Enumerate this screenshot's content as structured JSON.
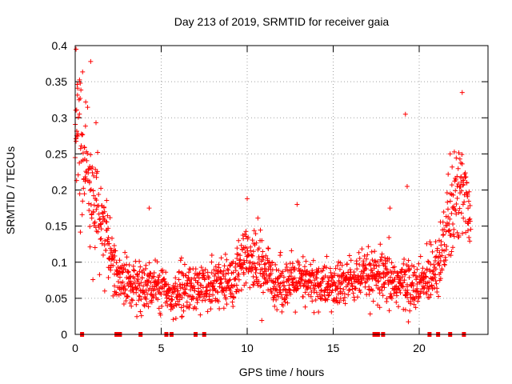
{
  "chart_data": {
    "type": "scatter",
    "title": "Day 213 of 2019, SRMTID for receiver gaia",
    "xlabel": "GPS time / hours",
    "ylabel": "SRMTID / TECUs",
    "xlim": [
      0,
      24
    ],
    "ylim": [
      0,
      0.4
    ],
    "xticks": [
      0,
      5,
      10,
      15,
      20
    ],
    "xtick_labels": [
      "0",
      "5",
      "10",
      "15",
      "20"
    ],
    "yticks": [
      0,
      0.05,
      0.1,
      0.15,
      0.2,
      0.25,
      0.3,
      0.35,
      0.4
    ],
    "ytick_labels": [
      "0",
      "0.05",
      "0.1",
      "0.15",
      "0.2",
      "0.25",
      "0.3",
      "0.35",
      "0.4"
    ],
    "grid": true,
    "marker": "plus",
    "color": "#ff0000",
    "zero_marks_hours": [
      0.4,
      2.4,
      2.6,
      3.8,
      5.3,
      5.6,
      7.0,
      7.5,
      17.4,
      17.6,
      17.9,
      20.6,
      21.1,
      21.8,
      22.6
    ],
    "series_profile": {
      "name": "SRMTID",
      "x": [
        0,
        0.3,
        0.6,
        0.9,
        1.2,
        1.5,
        1.8,
        2.1,
        2.5,
        3.0,
        4.0,
        5.0,
        5.5,
        6.0,
        7.0,
        8.0,
        9.0,
        9.5,
        10.0,
        10.5,
        11.0,
        11.5,
        12.0,
        13.0,
        14.0,
        15.0,
        16.0,
        17.0,
        18.0,
        19.0,
        20.0,
        20.5,
        21.0,
        21.5,
        22.0,
        22.5,
        23.0
      ],
      "center": [
        0.28,
        0.27,
        0.24,
        0.21,
        0.18,
        0.15,
        0.13,
        0.11,
        0.08,
        0.07,
        0.065,
        0.07,
        0.055,
        0.06,
        0.065,
        0.07,
        0.075,
        0.085,
        0.1,
        0.1,
        0.09,
        0.075,
        0.07,
        0.072,
        0.07,
        0.065,
        0.075,
        0.08,
        0.075,
        0.07,
        0.065,
        0.08,
        0.1,
        0.13,
        0.17,
        0.21,
        0.17
      ],
      "spread": [
        0.09,
        0.09,
        0.09,
        0.08,
        0.07,
        0.06,
        0.05,
        0.04,
        0.03,
        0.03,
        0.03,
        0.03,
        0.025,
        0.03,
        0.03,
        0.03,
        0.035,
        0.04,
        0.04,
        0.04,
        0.035,
        0.03,
        0.03,
        0.03,
        0.03,
        0.03,
        0.03,
        0.03,
        0.035,
        0.035,
        0.03,
        0.035,
        0.04,
        0.05,
        0.06,
        0.07,
        0.05
      ]
    },
    "outliers": [
      {
        "x": 0.05,
        "y": 0.395
      },
      {
        "x": 0.9,
        "y": 0.378
      },
      {
        "x": 4.3,
        "y": 0.175
      },
      {
        "x": 10.0,
        "y": 0.188
      },
      {
        "x": 12.9,
        "y": 0.18
      },
      {
        "x": 18.3,
        "y": 0.175
      },
      {
        "x": 19.2,
        "y": 0.305
      },
      {
        "x": 19.3,
        "y": 0.205
      },
      {
        "x": 22.5,
        "y": 0.335
      },
      {
        "x": 21.8,
        "y": 0.25
      }
    ]
  }
}
